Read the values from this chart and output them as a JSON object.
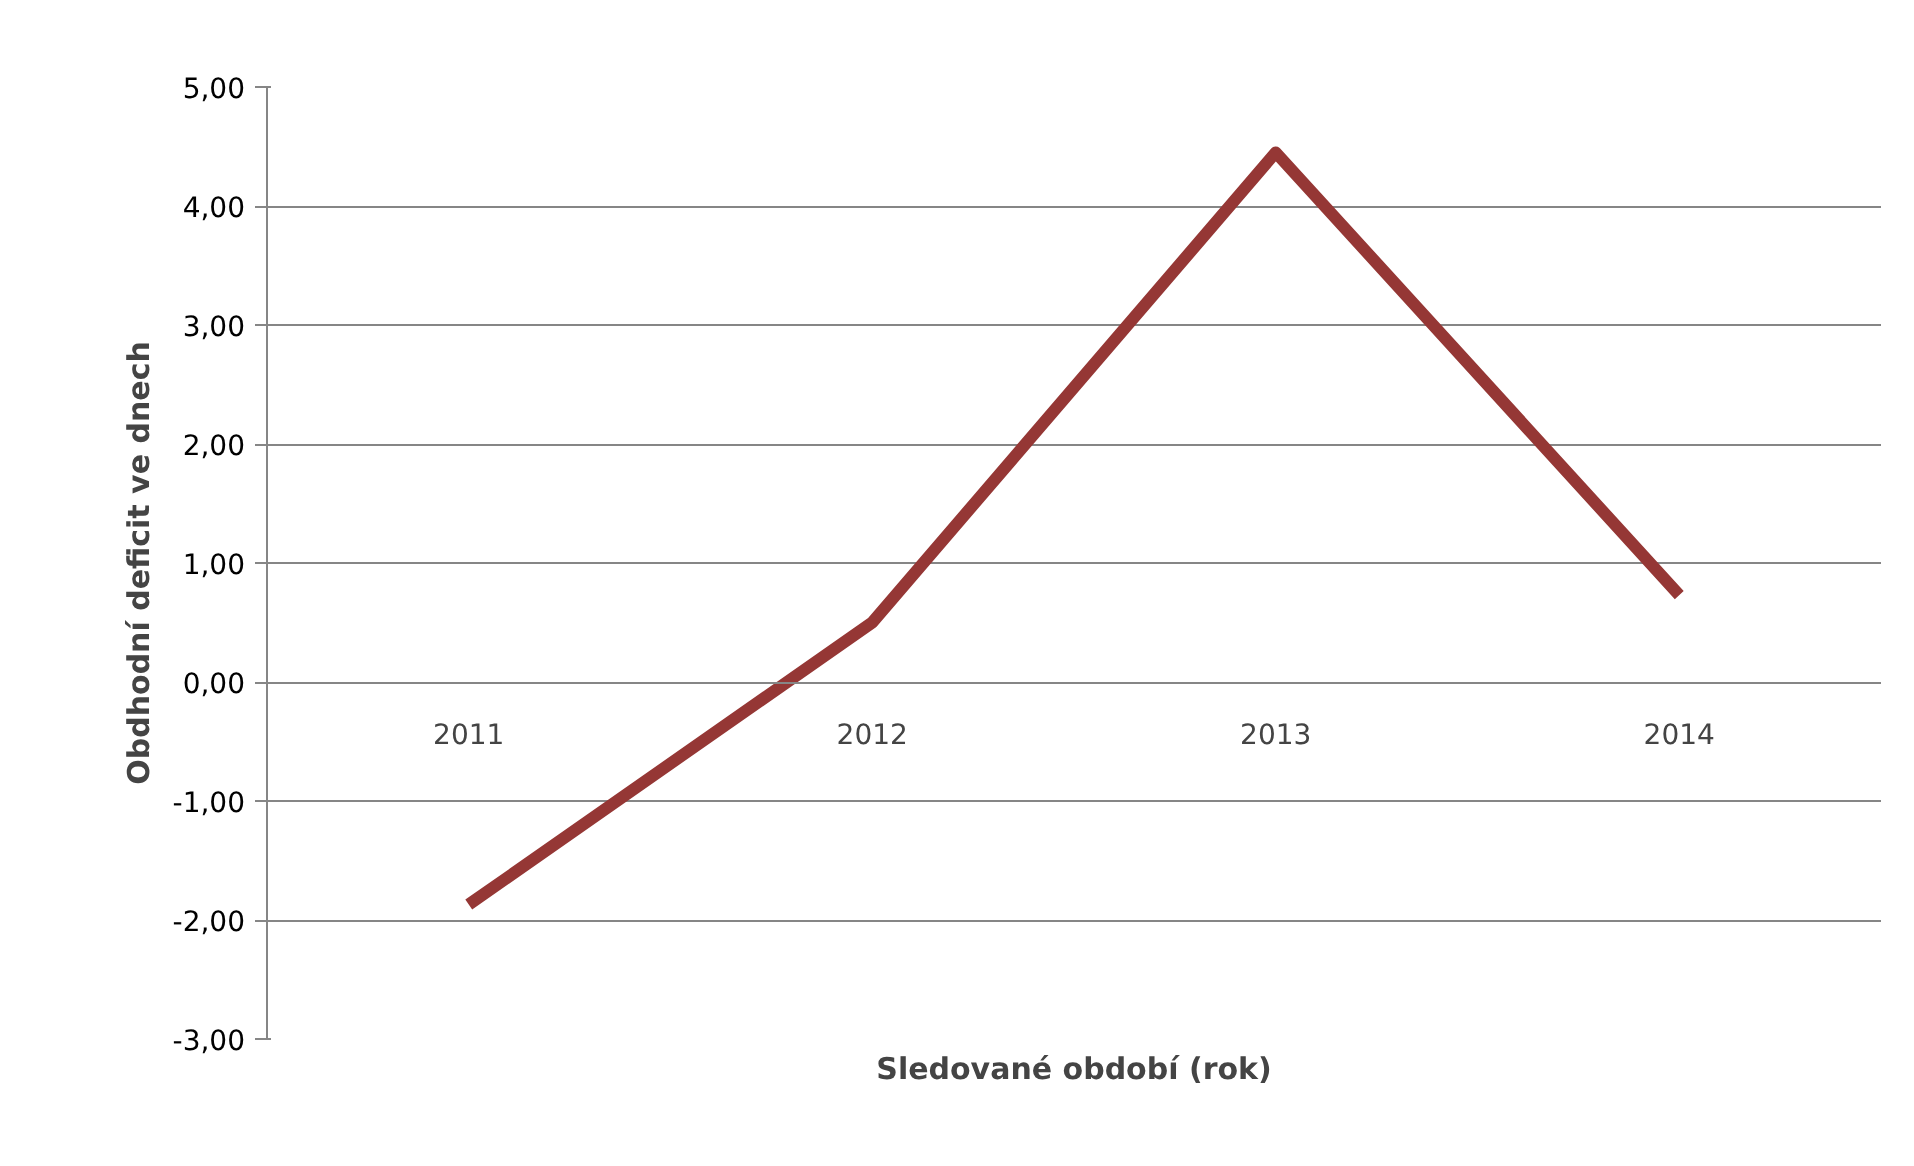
{
  "chart_data": {
    "type": "line",
    "xlabel": "Sledované období (rok)",
    "ylabel": "Obdhodní deficit ve dnech",
    "categories": [
      "2011",
      "2012",
      "2013",
      "2014"
    ],
    "series": [
      {
        "color": "#953735",
        "values": [
          -1.87,
          0.5,
          4.45,
          0.73
        ]
      }
    ],
    "ylim": [
      -3,
      5
    ],
    "yticks": [
      {
        "value": -3,
        "label": "-3,00"
      },
      {
        "value": -2,
        "label": "-2,00"
      },
      {
        "value": -1,
        "label": "-1,00"
      },
      {
        "value": 0,
        "label": "0,00"
      },
      {
        "value": 1,
        "label": "1,00"
      },
      {
        "value": 2,
        "label": "2,00"
      },
      {
        "value": 3,
        "label": "3,00"
      },
      {
        "value": 4,
        "label": "4,00"
      },
      {
        "value": 5,
        "label": "5,00"
      }
    ],
    "grid": "y",
    "marker": "none",
    "line_style": "solid"
  }
}
